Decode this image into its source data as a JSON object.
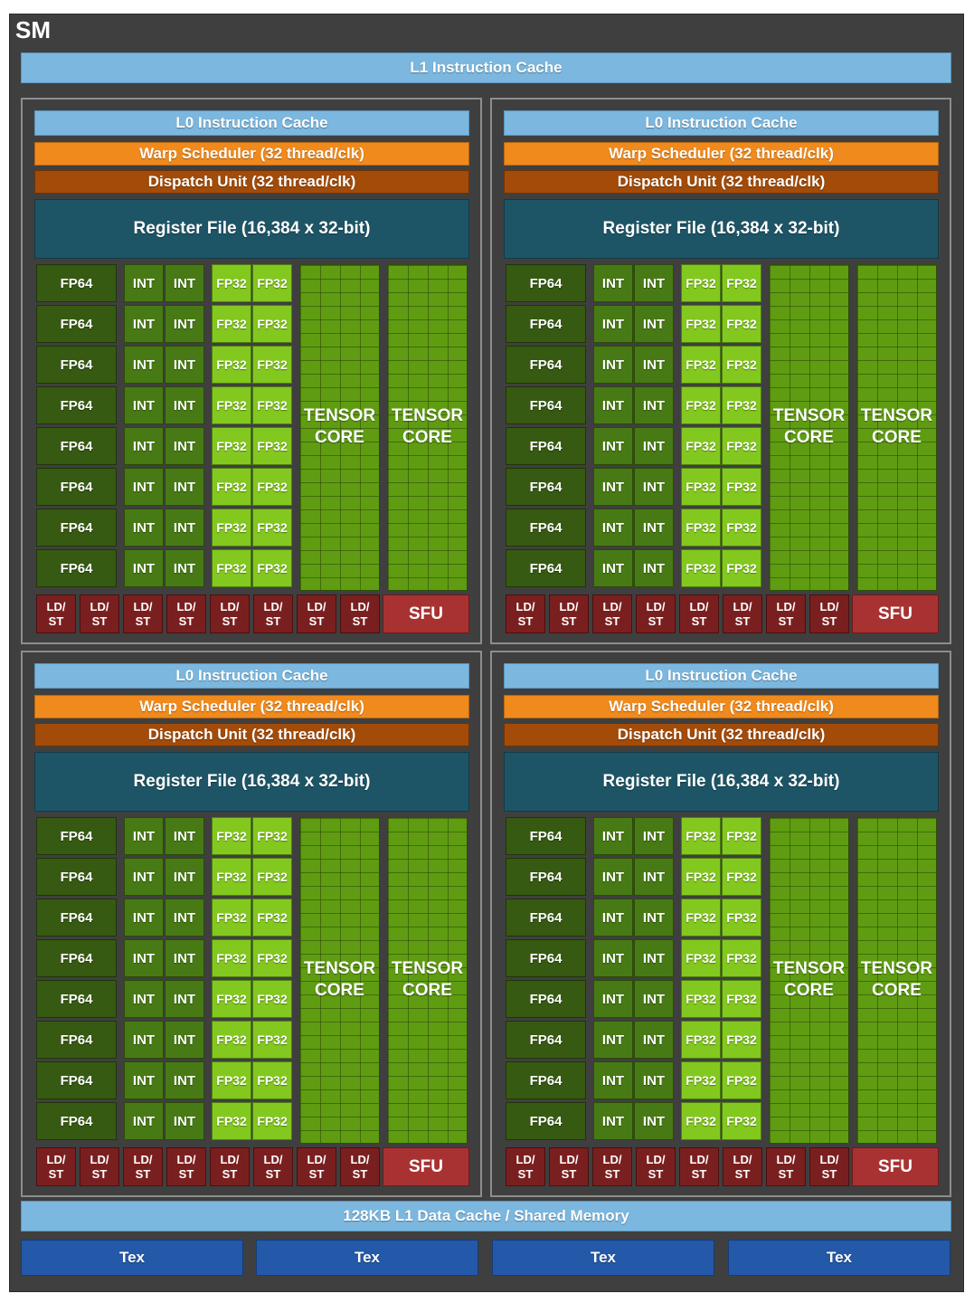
{
  "sm_label": "SM",
  "l1_instruction_cache": "L1 Instruction Cache",
  "data_cache": "128KB L1 Data Cache / Shared Memory",
  "tex_units": [
    "Tex",
    "Tex",
    "Tex",
    "Tex"
  ],
  "partition": {
    "l0_cache": "L0 Instruction Cache",
    "warp_scheduler": "Warp Scheduler (32 thread/clk)",
    "dispatch_unit": "Dispatch Unit (32 thread/clk)",
    "register_file": "Register File (16,384 x 32-bit)",
    "fp64_label": "FP64",
    "int_label": "INT",
    "fp32_label": "FP32",
    "tensor_line1": "TENSOR",
    "tensor_line2": "CORE",
    "ldst_line1": "LD/",
    "ldst_line2": "ST",
    "sfu_label": "SFU",
    "rows": 8,
    "ldst_count": 8,
    "tensor_cores": 2
  },
  "partition_count": 4,
  "colors": {
    "sm_bg": "#3f3f3f",
    "cache": "#7bb7df",
    "warp": "#f08a1c",
    "dispatch": "#a34b09",
    "register": "#1d5566",
    "fp64": "#365a11",
    "int": "#477a14",
    "fp32": "#83c81e",
    "tensor": "#5f9c12",
    "ldst": "#7a1f1f",
    "sfu": "#a83232",
    "tex": "#2458a8"
  }
}
